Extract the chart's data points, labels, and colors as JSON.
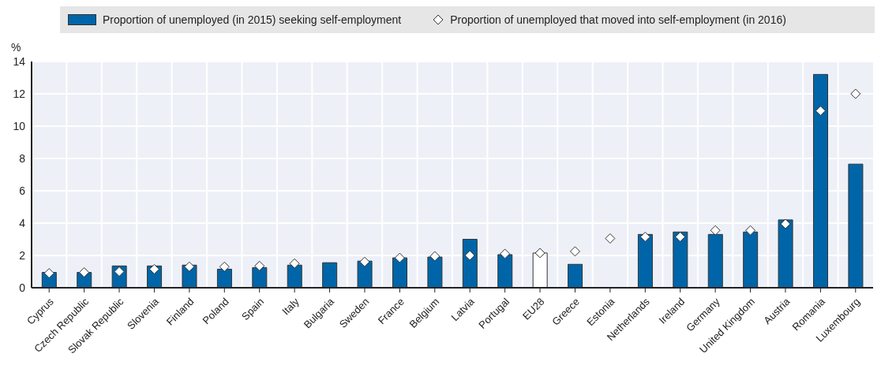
{
  "chart_data": {
    "type": "bar",
    "ylabel": "%",
    "categories": [
      "Cyprus",
      "Czech Republic",
      "Slovak Republic",
      "Slovenia",
      "Finland",
      "Poland",
      "Spain",
      "Italy",
      "Bulgaria",
      "Sweden",
      "France",
      "Belgium",
      "Latvia",
      "Portugal",
      "EU28",
      "Greece",
      "Estonia",
      "Netherlands",
      "Ireland",
      "Germany",
      "United Kingdom",
      "Austria",
      "Romania",
      "Luxembourg"
    ],
    "series": [
      {
        "name": "Proportion of unemployed (in 2015) seeking self-employment",
        "color": "#0065a8",
        "colors": [
          "#0065a8",
          "#0065a8",
          "#0065a8",
          "#0065a8",
          "#0065a8",
          "#0065a8",
          "#0065a8",
          "#0065a8",
          "#0065a8",
          "#0065a8",
          "#0065a8",
          "#0065a8",
          "#0065a8",
          "#0065a8",
          "#ffffff",
          "#0065a8",
          "#0065a8",
          "#0065a8",
          "#0065a8",
          "#0065a8",
          "#0065a8",
          "#0065a8",
          "#0065a8",
          "#0065a8"
        ],
        "values": [
          0.95,
          0.95,
          1.35,
          1.35,
          1.4,
          1.15,
          1.25,
          1.4,
          1.55,
          1.65,
          1.85,
          1.9,
          3.0,
          2.05,
          2.15,
          1.45,
          null,
          3.3,
          3.45,
          3.3,
          3.45,
          4.2,
          13.2,
          7.65
        ]
      },
      {
        "name": "Proportion of unemployed that moved into self-employment (in 2016)",
        "type": "scatter",
        "color": "#ffffff",
        "marker": "diamond",
        "values": [
          0.9,
          0.95,
          1.0,
          1.15,
          1.3,
          1.3,
          1.35,
          1.5,
          null,
          1.6,
          1.85,
          1.95,
          2.0,
          2.1,
          2.15,
          2.25,
          3.05,
          3.15,
          3.15,
          3.55,
          3.55,
          3.95,
          10.95,
          12.0
        ]
      }
    ],
    "ylim": [
      0,
      14
    ],
    "yticks": [
      0,
      2,
      4,
      6,
      8,
      10,
      12,
      14
    ],
    "grid": true,
    "legend": "top"
  }
}
